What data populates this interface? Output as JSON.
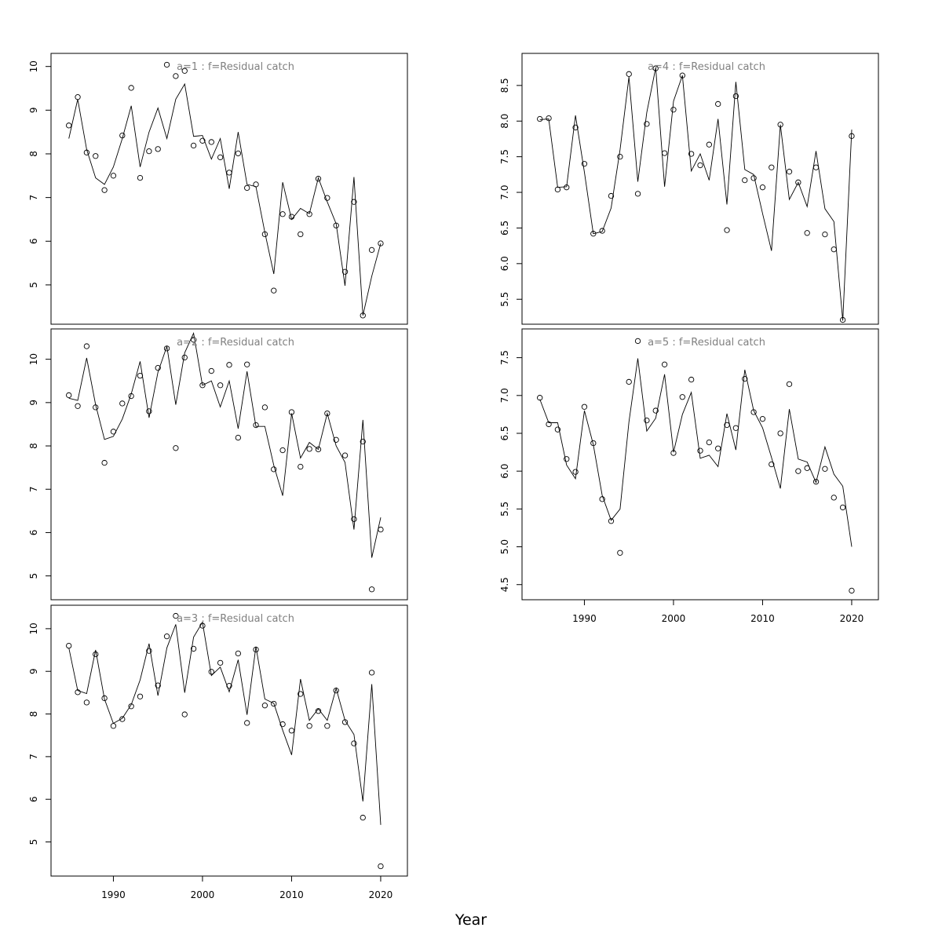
{
  "chart_data": {
    "type": "line",
    "xlabel": "Year",
    "panels": [
      {
        "title": "a=1  :  f=Residual catch",
        "xlim": [
          1983,
          2023
        ],
        "ylim": [
          4.1,
          10.3
        ],
        "x_ticks": [],
        "y_ticks": [
          5,
          6,
          7,
          8,
          9,
          10
        ],
        "x": [
          1985,
          1986,
          1987,
          1988,
          1989,
          1990,
          1991,
          1992,
          1993,
          1994,
          1995,
          1996,
          1997,
          1998,
          1999,
          2000,
          2001,
          2002,
          2003,
          2004,
          2005,
          2006,
          2007,
          2008,
          2009,
          2010,
          2011,
          2012,
          2013,
          2014,
          2015,
          2016,
          2017,
          2018,
          2019,
          2020
        ],
        "observed": [
          8.65,
          9.3,
          8.03,
          7.95,
          7.17,
          7.5,
          8.42,
          9.51,
          7.45,
          8.06,
          8.11,
          10.04,
          9.78,
          9.9,
          8.19,
          8.3,
          8.27,
          7.92,
          7.57,
          8.01,
          7.22,
          7.3,
          6.16,
          4.87,
          6.62,
          6.56,
          6.16,
          6.62,
          7.43,
          6.99,
          6.36,
          5.3,
          6.9,
          4.3,
          5.8,
          5.95
        ],
        "fitted": [
          8.35,
          9.25,
          8.1,
          7.45,
          7.3,
          7.7,
          8.35,
          9.1,
          7.7,
          8.5,
          9.05,
          8.35,
          9.25,
          9.6,
          8.4,
          8.42,
          7.88,
          8.35,
          7.2,
          8.5,
          7.3,
          7.25,
          6.2,
          5.25,
          7.35,
          6.5,
          6.75,
          6.63,
          7.45,
          6.9,
          6.4,
          4.98,
          7.47,
          4.3,
          5.2,
          5.95
        ]
      },
      {
        "title": "a=2  :  f=Residual catch",
        "xlim": [
          1983,
          2023
        ],
        "ylim": [
          4.45,
          10.7
        ],
        "x_ticks": [],
        "y_ticks": [
          5,
          6,
          7,
          8,
          9,
          10
        ],
        "x": [
          1985,
          1986,
          1987,
          1988,
          1989,
          1990,
          1991,
          1992,
          1993,
          1994,
          1995,
          1996,
          1997,
          1998,
          1999,
          2000,
          2001,
          2002,
          2003,
          2004,
          2005,
          2006,
          2007,
          2008,
          2009,
          2010,
          2011,
          2012,
          2013,
          2014,
          2015,
          2016,
          2017,
          2018,
          2019,
          2020
        ],
        "observed": [
          9.17,
          8.92,
          10.3,
          8.89,
          7.61,
          8.33,
          8.98,
          9.15,
          9.62,
          8.8,
          9.8,
          10.25,
          7.95,
          10.04,
          10.45,
          9.4,
          9.73,
          9.4,
          9.87,
          8.19,
          9.88,
          8.48,
          8.89,
          7.46,
          7.9,
          8.78,
          7.52,
          7.93,
          7.92,
          8.75,
          8.14,
          7.78,
          6.31,
          8.1,
          4.69,
          6.07
        ],
        "fitted": [
          9.1,
          9.05,
          10.03,
          8.95,
          8.15,
          8.22,
          8.62,
          9.2,
          9.95,
          8.65,
          9.7,
          10.3,
          8.95,
          10.15,
          10.6,
          9.4,
          9.5,
          8.9,
          9.5,
          8.4,
          9.72,
          8.45,
          8.45,
          7.55,
          6.85,
          8.75,
          7.72,
          8.08,
          7.92,
          8.75,
          8.0,
          7.62,
          6.07,
          8.6,
          5.42,
          6.35
        ]
      },
      {
        "title": "a=3  :  f=Residual catch",
        "xlim": [
          1983,
          2023
        ],
        "ylim": [
          4.2,
          10.55
        ],
        "x_ticks": [
          1990,
          2000,
          2010,
          2020
        ],
        "y_ticks": [
          5,
          6,
          7,
          8,
          9,
          10
        ],
        "x": [
          1985,
          1986,
          1987,
          1988,
          1989,
          1990,
          1991,
          1992,
          1993,
          1994,
          1995,
          1996,
          1997,
          1998,
          1999,
          2000,
          2001,
          2002,
          2003,
          2004,
          2005,
          2006,
          2007,
          2008,
          2009,
          2010,
          2011,
          2012,
          2013,
          2014,
          2015,
          2016,
          2017,
          2018,
          2019,
          2020
        ],
        "observed": [
          9.6,
          8.51,
          8.27,
          9.4,
          8.37,
          7.72,
          7.88,
          8.18,
          8.41,
          9.48,
          8.67,
          9.82,
          10.3,
          7.99,
          9.53,
          10.07,
          8.99,
          9.2,
          8.66,
          9.42,
          7.79,
          9.51,
          8.2,
          8.24,
          7.76,
          7.61,
          8.47,
          7.72,
          8.07,
          7.72,
          8.55,
          7.81,
          7.31,
          5.57,
          8.97,
          4.43
        ],
        "fitted": [
          9.55,
          8.55,
          8.48,
          9.5,
          8.35,
          7.78,
          7.9,
          8.22,
          8.8,
          9.65,
          8.43,
          9.55,
          10.1,
          8.5,
          9.8,
          10.15,
          8.9,
          9.1,
          8.52,
          9.27,
          7.98,
          9.58,
          8.35,
          8.25,
          7.62,
          7.04,
          8.82,
          7.85,
          8.12,
          7.85,
          8.6,
          7.85,
          7.52,
          5.95,
          8.7,
          5.4
        ]
      },
      {
        "title": "a=4  :  f=Residual catch",
        "xlim": [
          1983,
          2023
        ],
        "ylim": [
          5.15,
          8.95
        ],
        "x_ticks": [],
        "y_ticks": [
          5.5,
          6.0,
          6.5,
          7.0,
          7.5,
          8.0,
          8.5
        ],
        "x": [
          1985,
          1986,
          1987,
          1988,
          1989,
          1990,
          1991,
          1992,
          1993,
          1994,
          1995,
          1996,
          1997,
          1998,
          1999,
          2000,
          2001,
          2002,
          2003,
          2004,
          2005,
          2006,
          2007,
          2008,
          2009,
          2010,
          2011,
          2012,
          2013,
          2014,
          2015,
          2016,
          2017,
          2018,
          2019,
          2020
        ],
        "observed": [
          8.03,
          8.04,
          7.04,
          7.07,
          7.91,
          7.4,
          6.42,
          6.46,
          6.95,
          7.5,
          8.66,
          6.98,
          7.96,
          8.74,
          7.55,
          8.16,
          8.64,
          7.54,
          7.38,
          7.67,
          8.24,
          6.47,
          8.35,
          7.17,
          7.2,
          7.07,
          7.35,
          7.95,
          7.29,
          7.14,
          6.43,
          7.35,
          6.41,
          6.2,
          5.21,
          7.79
        ],
        "fitted": [
          8.02,
          8.03,
          7.07,
          7.08,
          8.08,
          7.28,
          6.42,
          6.45,
          6.78,
          7.6,
          8.62,
          7.15,
          8.12,
          8.75,
          7.08,
          8.28,
          8.64,
          7.3,
          7.54,
          7.17,
          8.03,
          6.83,
          8.55,
          7.32,
          7.25,
          6.7,
          6.18,
          7.95,
          6.9,
          7.14,
          6.8,
          7.58,
          6.77,
          6.59,
          5.2,
          7.88
        ]
      },
      {
        "title": "a=5  :  f=Residual catch",
        "xlim": [
          1983,
          2023
        ],
        "ylim": [
          4.3,
          7.88
        ],
        "x_ticks": [
          1990,
          2000,
          2010,
          2020
        ],
        "y_ticks": [
          4.5,
          5.0,
          5.5,
          6.0,
          6.5,
          7.0,
          7.5
        ],
        "x": [
          1985,
          1986,
          1987,
          1988,
          1989,
          1990,
          1991,
          1992,
          1993,
          1994,
          1995,
          1996,
          1997,
          1998,
          1999,
          2000,
          2001,
          2002,
          2003,
          2004,
          2005,
          2006,
          2007,
          2008,
          2009,
          2010,
          2011,
          2012,
          2013,
          2014,
          2015,
          2016,
          2017,
          2018,
          2019,
          2020
        ],
        "observed": [
          6.97,
          6.62,
          6.55,
          6.16,
          5.99,
          6.85,
          6.37,
          5.63,
          5.34,
          4.92,
          7.18,
          7.72,
          6.67,
          6.8,
          7.41,
          6.24,
          6.98,
          7.21,
          6.27,
          6.38,
          6.3,
          6.61,
          6.57,
          7.22,
          6.78,
          6.69,
          6.09,
          6.5,
          7.15,
          6.0,
          6.04,
          5.86,
          6.03,
          5.65,
          5.52,
          4.42
        ],
        "fitted": [
          6.95,
          6.64,
          6.64,
          6.08,
          5.9,
          6.8,
          6.35,
          5.68,
          5.35,
          5.5,
          6.65,
          7.49,
          6.53,
          6.7,
          7.28,
          6.25,
          6.75,
          7.04,
          6.17,
          6.21,
          6.06,
          6.76,
          6.28,
          7.34,
          6.8,
          6.57,
          6.18,
          5.77,
          6.82,
          6.16,
          6.12,
          5.85,
          6.32,
          5.96,
          5.8,
          5.0
        ]
      }
    ]
  },
  "colors": {
    "line": "#000000",
    "points": "#000000",
    "title": "#808080",
    "frame": "#000000"
  }
}
